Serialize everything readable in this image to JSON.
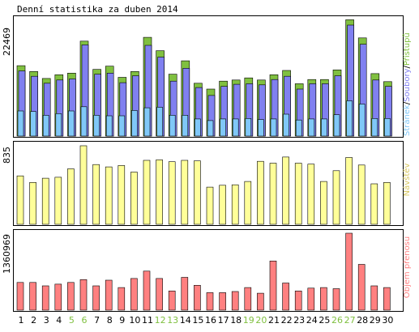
{
  "title": "Denní statistika za duben 2014",
  "colors": {
    "hits": "#80c040",
    "files": "#8080f0",
    "pages": "#80c8f8",
    "visits": "#ffff99",
    "visits_label": "#d8c860",
    "kbytes": "#ff8080",
    "weekend": "#80c040",
    "weekday": "#000000"
  },
  "chart_data": [
    {
      "type": "bar",
      "name": "hits-files-pages",
      "max_label": "22469",
      "y_max": 22469,
      "legend": {
        "pages": "Stránek",
        "files": "Soubory",
        "hits": "Přístupů",
        "separator": "/"
      },
      "categories": [
        "1",
        "2",
        "3",
        "4",
        "5",
        "6",
        "7",
        "8",
        "9",
        "10",
        "11",
        "12",
        "13",
        "14",
        "15",
        "16",
        "17",
        "18",
        "19",
        "20",
        "21",
        "22",
        "23",
        "24",
        "25",
        "26",
        "27",
        "28",
        "29",
        "30"
      ],
      "weekend_days": [
        "5",
        "6",
        "12",
        "13",
        "19",
        "20",
        "26",
        "27"
      ],
      "series": [
        {
          "name": "Přístupů",
          "color": "#80c040",
          "values": [
            13200,
            12100,
            10800,
            11500,
            11800,
            17800,
            12500,
            13100,
            11000,
            12100,
            18500,
            16000,
            11600,
            14100,
            9900,
            8800,
            10300,
            10500,
            10900,
            10500,
            11500,
            12300,
            9800,
            10600,
            10600,
            12400,
            21800,
            18400,
            11700,
            10200
          ]
        },
        {
          "name": "Soubory",
          "color": "#8080f0",
          "values": [
            12200,
            11200,
            9900,
            10500,
            10700,
            17100,
            11600,
            11800,
            10000,
            11300,
            17000,
            14800,
            10300,
            12700,
            9100,
            7600,
            9300,
            9700,
            9800,
            9600,
            10600,
            11200,
            8800,
            9800,
            9800,
            11300,
            20800,
            17200,
            10500,
            9300
          ]
        },
        {
          "name": "Stránek",
          "color": "#80c8f8",
          "values": [
            4700,
            4600,
            3900,
            4200,
            4700,
            5500,
            3900,
            3800,
            3800,
            4800,
            5300,
            5400,
            3900,
            3900,
            3200,
            2900,
            3200,
            3200,
            3300,
            3100,
            3200,
            4100,
            3000,
            3200,
            3200,
            4000,
            6600,
            6000,
            3300,
            3300
          ]
        }
      ]
    },
    {
      "type": "bar",
      "name": "visits",
      "max_label": "835",
      "y_max": 835,
      "legend": {
        "visits": "Návštěv"
      },
      "categories": [
        "1",
        "2",
        "3",
        "4",
        "5",
        "6",
        "7",
        "8",
        "9",
        "10",
        "11",
        "12",
        "13",
        "14",
        "15",
        "16",
        "17",
        "18",
        "19",
        "20",
        "21",
        "22",
        "23",
        "24",
        "25",
        "26",
        "27",
        "28",
        "29",
        "30"
      ],
      "series": [
        {
          "name": "Návštěv",
          "color": "#ffff99",
          "values": [
            515,
            445,
            490,
            500,
            590,
            835,
            635,
            610,
            625,
            555,
            680,
            685,
            665,
            680,
            675,
            395,
            415,
            420,
            455,
            670,
            650,
            715,
            650,
            640,
            455,
            570,
            710,
            630,
            430,
            445
          ]
        }
      ]
    },
    {
      "type": "bar",
      "name": "kbytes",
      "max_label": "1360969",
      "y_max": 1360969,
      "legend": {
        "kbytes": "Objem přenosu"
      },
      "categories": [
        "1",
        "2",
        "3",
        "4",
        "5",
        "6",
        "7",
        "8",
        "9",
        "10",
        "11",
        "12",
        "13",
        "14",
        "15",
        "16",
        "17",
        "18",
        "19",
        "20",
        "21",
        "22",
        "23",
        "24",
        "25",
        "26",
        "27",
        "28",
        "29",
        "30"
      ],
      "series": [
        {
          "name": "Objem přenosu",
          "color": "#ff8080",
          "values": [
            490000,
            490000,
            430000,
            460000,
            490000,
            540000,
            430000,
            530000,
            400000,
            560000,
            690000,
            560000,
            340000,
            580000,
            440000,
            310000,
            310000,
            330000,
            400000,
            300000,
            870000,
            480000,
            340000,
            390000,
            400000,
            380000,
            1360969,
            810000,
            430000,
            400000
          ]
        }
      ]
    }
  ]
}
